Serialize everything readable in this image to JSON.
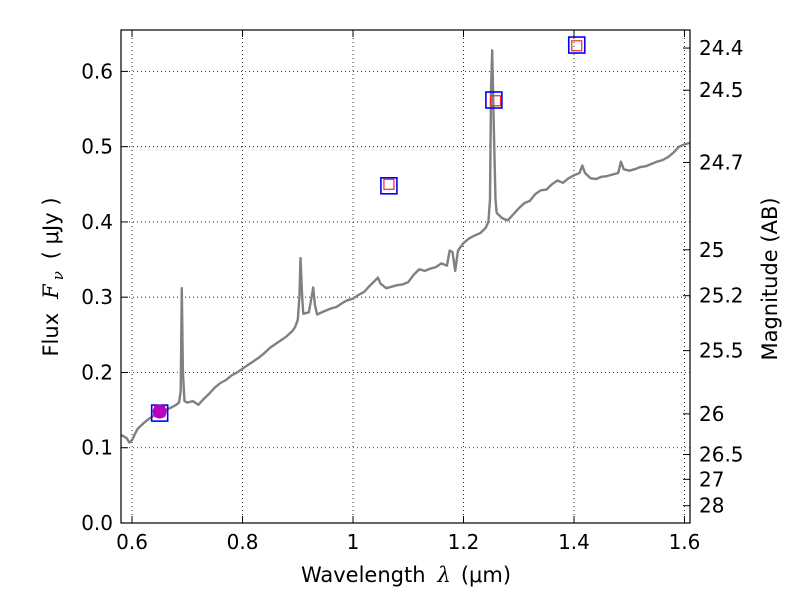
{
  "chart_data": {
    "type": "line",
    "xlabel": {
      "prefix": "Wavelength",
      "symbol": "λ",
      "unit": "(μm)"
    },
    "ylabel": {
      "prefix": "Flux",
      "symbol": "F",
      "subscript": "ν",
      "unit": "( μJy )"
    },
    "y2label": "Magnitude (AB)",
    "xlim": [
      0.58,
      1.61
    ],
    "ylim": [
      0.0,
      0.655
    ],
    "grid": true,
    "x_ticks": [
      {
        "value": 0.6,
        "label": "0.6"
      },
      {
        "value": 0.8,
        "label": "0.8"
      },
      {
        "value": 1.0,
        "label": "1"
      },
      {
        "value": 1.2,
        "label": "1.2"
      },
      {
        "value": 1.4,
        "label": "1.4"
      },
      {
        "value": 1.6,
        "label": "1.6"
      }
    ],
    "y_ticks": [
      {
        "value": 0.0,
        "label": "0.0"
      },
      {
        "value": 0.1,
        "label": "0.1"
      },
      {
        "value": 0.2,
        "label": "0.2"
      },
      {
        "value": 0.3,
        "label": "0.3"
      },
      {
        "value": 0.4,
        "label": "0.4"
      },
      {
        "value": 0.5,
        "label": "0.5"
      },
      {
        "value": 0.6,
        "label": "0.6"
      }
    ],
    "y2_ticks": [
      {
        "flux": 0.631,
        "label": "24.4"
      },
      {
        "flux": 0.575,
        "label": "24.5"
      },
      {
        "flux": 0.479,
        "label": "24.7"
      },
      {
        "flux": 0.363,
        "label": "25"
      },
      {
        "flux": 0.302,
        "label": "25.2"
      },
      {
        "flux": 0.229,
        "label": "25.5"
      },
      {
        "flux": 0.145,
        "label": "26"
      },
      {
        "flux": 0.091,
        "label": "26.5"
      },
      {
        "flux": 0.058,
        "label": "27"
      },
      {
        "flux": 0.023,
        "label": "28"
      }
    ],
    "series": [
      {
        "style": "line",
        "color": "#808080",
        "points": [
          [
            0.58,
            0.117
          ],
          [
            0.59,
            0.113
          ],
          [
            0.595,
            0.107
          ],
          [
            0.6,
            0.11
          ],
          [
            0.605,
            0.118
          ],
          [
            0.61,
            0.125
          ],
          [
            0.62,
            0.132
          ],
          [
            0.63,
            0.138
          ],
          [
            0.64,
            0.143
          ],
          [
            0.65,
            0.147
          ],
          [
            0.66,
            0.15
          ],
          [
            0.67,
            0.153
          ],
          [
            0.68,
            0.157
          ],
          [
            0.685,
            0.16
          ],
          [
            0.688,
            0.175
          ],
          [
            0.69,
            0.312
          ],
          [
            0.692,
            0.2
          ],
          [
            0.695,
            0.162
          ],
          [
            0.7,
            0.16
          ],
          [
            0.71,
            0.162
          ],
          [
            0.72,
            0.157
          ],
          [
            0.73,
            0.165
          ],
          [
            0.74,
            0.172
          ],
          [
            0.75,
            0.18
          ],
          [
            0.76,
            0.186
          ],
          [
            0.77,
            0.19
          ],
          [
            0.78,
            0.196
          ],
          [
            0.79,
            0.2
          ],
          [
            0.8,
            0.205
          ],
          [
            0.81,
            0.21
          ],
          [
            0.82,
            0.215
          ],
          [
            0.83,
            0.22
          ],
          [
            0.84,
            0.226
          ],
          [
            0.85,
            0.233
          ],
          [
            0.86,
            0.238
          ],
          [
            0.87,
            0.243
          ],
          [
            0.88,
            0.248
          ],
          [
            0.89,
            0.255
          ],
          [
            0.895,
            0.26
          ],
          [
            0.9,
            0.27
          ],
          [
            0.903,
            0.3
          ],
          [
            0.905,
            0.352
          ],
          [
            0.908,
            0.3
          ],
          [
            0.91,
            0.278
          ],
          [
            0.92,
            0.28
          ],
          [
            0.925,
            0.3
          ],
          [
            0.928,
            0.313
          ],
          [
            0.931,
            0.29
          ],
          [
            0.935,
            0.277
          ],
          [
            0.95,
            0.282
          ],
          [
            0.96,
            0.285
          ],
          [
            0.97,
            0.287
          ],
          [
            0.98,
            0.292
          ],
          [
            0.99,
            0.296
          ],
          [
            1.0,
            0.298
          ],
          [
            1.01,
            0.303
          ],
          [
            1.02,
            0.307
          ],
          [
            1.03,
            0.315
          ],
          [
            1.04,
            0.322
          ],
          [
            1.045,
            0.326
          ],
          [
            1.05,
            0.318
          ],
          [
            1.06,
            0.312
          ],
          [
            1.07,
            0.314
          ],
          [
            1.08,
            0.316
          ],
          [
            1.09,
            0.317
          ],
          [
            1.1,
            0.32
          ],
          [
            1.11,
            0.33
          ],
          [
            1.12,
            0.337
          ],
          [
            1.13,
            0.335
          ],
          [
            1.14,
            0.338
          ],
          [
            1.15,
            0.34
          ],
          [
            1.16,
            0.345
          ],
          [
            1.17,
            0.342
          ],
          [
            1.175,
            0.362
          ],
          [
            1.18,
            0.36
          ],
          [
            1.185,
            0.335
          ],
          [
            1.19,
            0.362
          ],
          [
            1.2,
            0.372
          ],
          [
            1.21,
            0.378
          ],
          [
            1.22,
            0.382
          ],
          [
            1.23,
            0.385
          ],
          [
            1.24,
            0.392
          ],
          [
            1.245,
            0.4
          ],
          [
            1.248,
            0.43
          ],
          [
            1.25,
            0.58
          ],
          [
            1.252,
            0.628
          ],
          [
            1.255,
            0.52
          ],
          [
            1.258,
            0.43
          ],
          [
            1.26,
            0.412
          ],
          [
            1.27,
            0.405
          ],
          [
            1.28,
            0.402
          ],
          [
            1.29,
            0.41
          ],
          [
            1.3,
            0.418
          ],
          [
            1.31,
            0.425
          ],
          [
            1.32,
            0.428
          ],
          [
            1.33,
            0.437
          ],
          [
            1.34,
            0.442
          ],
          [
            1.35,
            0.443
          ],
          [
            1.36,
            0.45
          ],
          [
            1.37,
            0.455
          ],
          [
            1.38,
            0.452
          ],
          [
            1.39,
            0.458
          ],
          [
            1.4,
            0.462
          ],
          [
            1.41,
            0.465
          ],
          [
            1.415,
            0.475
          ],
          [
            1.42,
            0.465
          ],
          [
            1.43,
            0.458
          ],
          [
            1.44,
            0.457
          ],
          [
            1.45,
            0.46
          ],
          [
            1.46,
            0.461
          ],
          [
            1.47,
            0.463
          ],
          [
            1.48,
            0.465
          ],
          [
            1.485,
            0.48
          ],
          [
            1.49,
            0.47
          ],
          [
            1.5,
            0.468
          ],
          [
            1.51,
            0.47
          ],
          [
            1.52,
            0.473
          ],
          [
            1.53,
            0.474
          ],
          [
            1.54,
            0.477
          ],
          [
            1.55,
            0.48
          ],
          [
            1.56,
            0.482
          ],
          [
            1.57,
            0.486
          ],
          [
            1.58,
            0.492
          ],
          [
            1.59,
            0.5
          ],
          [
            1.6,
            0.503
          ],
          [
            1.61,
            0.505
          ]
        ]
      },
      {
        "style": "square-marker",
        "color": "#0000ff",
        "points": [
          [
            0.65,
            0.146
          ],
          [
            1.065,
            0.448
          ],
          [
            1.255,
            0.562
          ],
          [
            1.405,
            0.635
          ]
        ]
      },
      {
        "style": "small-square-marker",
        "color": "#ff2222",
        "points": [
          [
            0.65,
            0.148
          ],
          [
            1.065,
            0.45
          ],
          [
            1.258,
            0.561
          ],
          [
            1.405,
            0.634
          ]
        ]
      },
      {
        "style": "circle-marker",
        "color": "#bb00bb",
        "points": [
          [
            0.65,
            0.148
          ]
        ]
      }
    ]
  }
}
